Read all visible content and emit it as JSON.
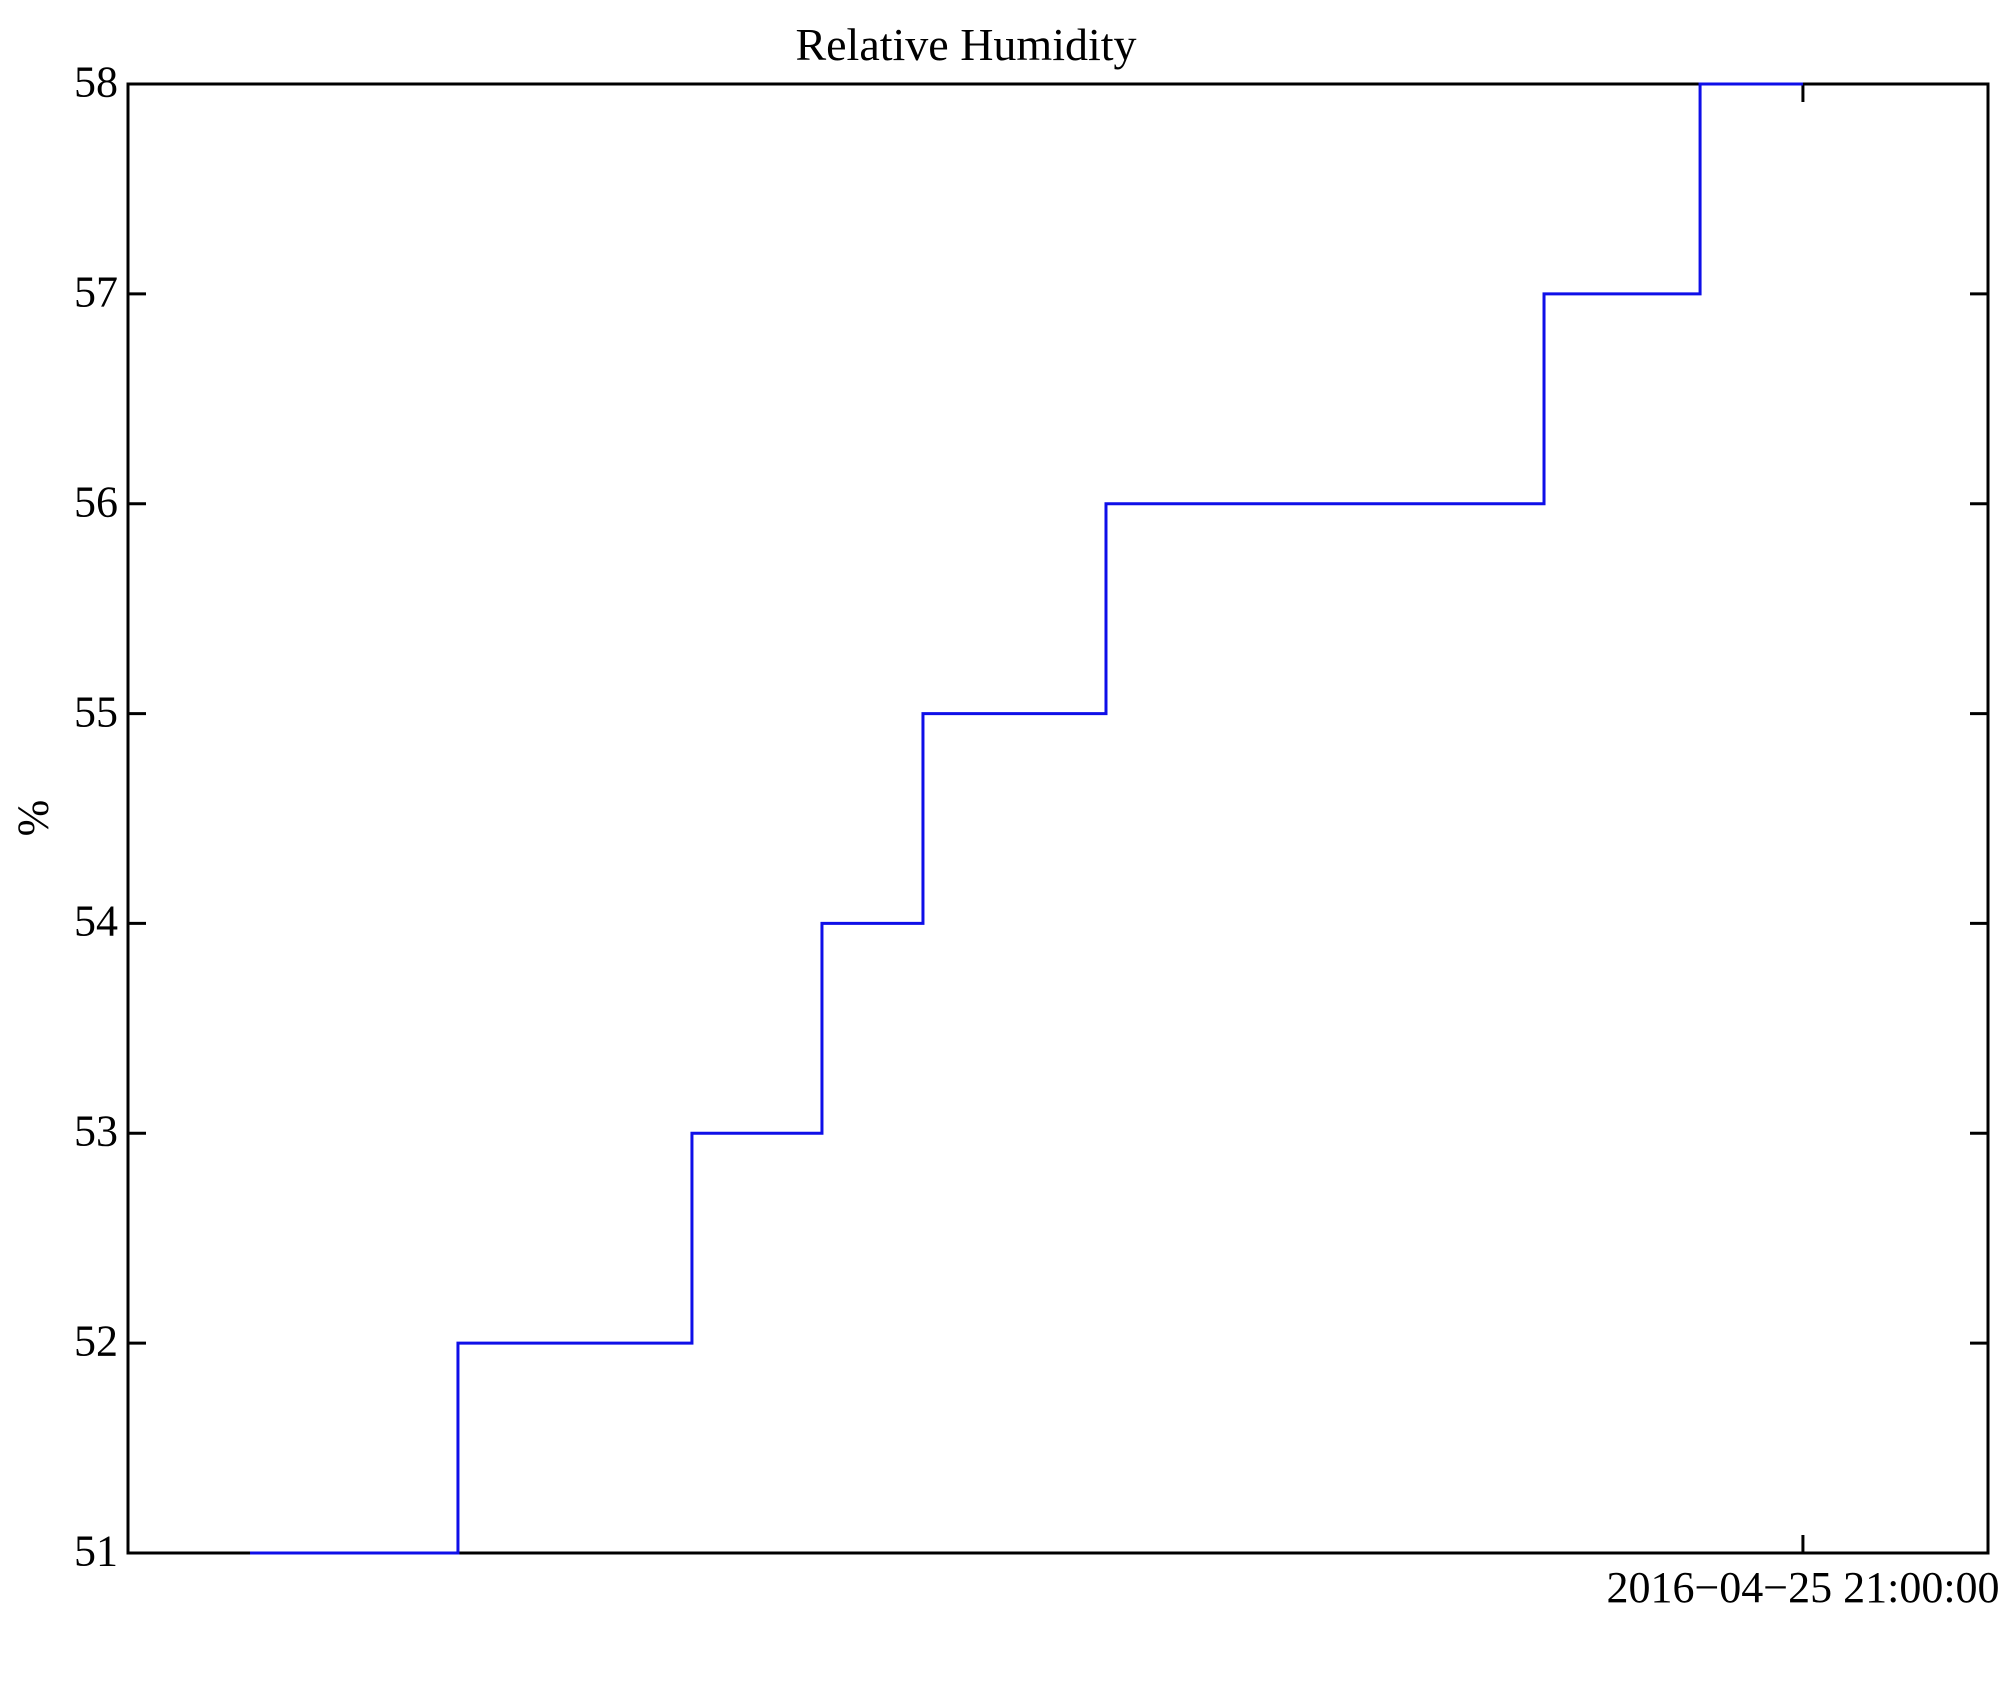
{
  "chart_data": {
    "type": "line",
    "subtype": "step-post",
    "title": "Relative Humidity",
    "xlabel": "",
    "ylabel": "%",
    "ylim": [
      51,
      58
    ],
    "yticks": [
      51,
      52,
      53,
      54,
      55,
      56,
      57,
      58
    ],
    "ytick_labels": [
      "51",
      "52",
      "53",
      "54",
      "55",
      "56",
      "57",
      "58"
    ],
    "xtick": {
      "position_fraction": 0.9005,
      "label": "2016−04−25 21:00:00"
    },
    "grid": false,
    "legend": "none",
    "axis_color": "#000000",
    "line_color": "#0f0fe8",
    "series": [
      {
        "name": "Relative Humidity",
        "unit": "%",
        "step_points": [
          {
            "x": 0.0656,
            "y": 51
          },
          {
            "x": 0.1774,
            "y": 52
          },
          {
            "x": 0.3032,
            "y": 53
          },
          {
            "x": 0.3731,
            "y": 54
          },
          {
            "x": 0.4274,
            "y": 55
          },
          {
            "x": 0.5258,
            "y": 56
          },
          {
            "x": 0.7613,
            "y": 57
          },
          {
            "x": 0.8452,
            "y": 58
          },
          {
            "x": 0.9005,
            "y": 58
          }
        ]
      }
    ]
  }
}
